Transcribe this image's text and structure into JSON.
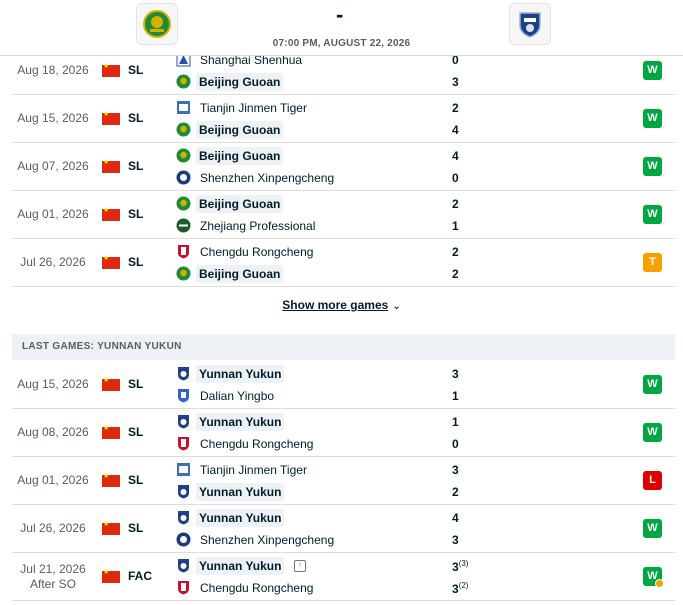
{
  "match": {
    "score": "-",
    "datetime": "07:00 PM, AUGUST 22, 2026",
    "home_crest": "beijing-guoan-crest",
    "away_crest": "yunnan-yukun-crest"
  },
  "colors": {
    "win": "#00a83f",
    "draw": "#f7a100",
    "loss": "#dc0000"
  },
  "home_games": [
    {
      "date": "Aug 18, 2026",
      "comp": "SL",
      "team1": "Shanghai Shenhua",
      "team2": "Beijing Guoan",
      "score1": "0",
      "score2": "3",
      "result": "W"
    },
    {
      "date": "Aug 15, 2026",
      "comp": "SL",
      "team1": "Tianjin Jinmen Tiger",
      "team2": "Beijing Guoan",
      "score1": "2",
      "score2": "4",
      "result": "W"
    },
    {
      "date": "Aug 07, 2026",
      "comp": "SL",
      "team1": "Beijing Guoan",
      "team2": "Shenzhen Xinpengcheng",
      "score1": "4",
      "score2": "0",
      "result": "W"
    },
    {
      "date": "Aug 01, 2026",
      "comp": "SL",
      "team1": "Beijing Guoan",
      "team2": "Zhejiang Professional",
      "score1": "2",
      "score2": "1",
      "result": "W"
    },
    {
      "date": "Jul 26, 2026",
      "comp": "SL",
      "team1": "Chengdu Rongcheng",
      "team2": "Beijing Guoan",
      "score1": "2",
      "score2": "2",
      "result": "T"
    }
  ],
  "show_more": "Show more games",
  "away_section_title": "LAST GAMES: YUNNAN YUKUN",
  "away_games": [
    {
      "date": "Aug 15, 2026",
      "comp": "SL",
      "team1": "Yunnan Yukun",
      "team2": "Dalian Yingbo",
      "score1": "3",
      "score2": "1",
      "result": "W"
    },
    {
      "date": "Aug 08, 2026",
      "comp": "SL",
      "team1": "Yunnan Yukun",
      "team2": "Chengdu Rongcheng",
      "score1": "1",
      "score2": "0",
      "result": "W"
    },
    {
      "date": "Aug 01, 2026",
      "comp": "SL",
      "team1": "Tianjin Jinmen Tiger",
      "team2": "Yunnan Yukun",
      "score1": "3",
      "score2": "2",
      "result": "L"
    },
    {
      "date": "Jul 26, 2026",
      "comp": "SL",
      "team1": "Yunnan Yukun",
      "team2": "Shenzhen Xinpengcheng",
      "score1": "4",
      "score2": "3",
      "result": "W"
    },
    {
      "date": "Jul 21, 2026",
      "date_note": "After SO",
      "comp": "FAC",
      "team1": "Yunnan Yukun",
      "team2": "Chengdu Rongcheng",
      "score1": "3",
      "score2": "3",
      "pen1": "(3)",
      "pen2": "(2)",
      "result": "W"
    }
  ]
}
